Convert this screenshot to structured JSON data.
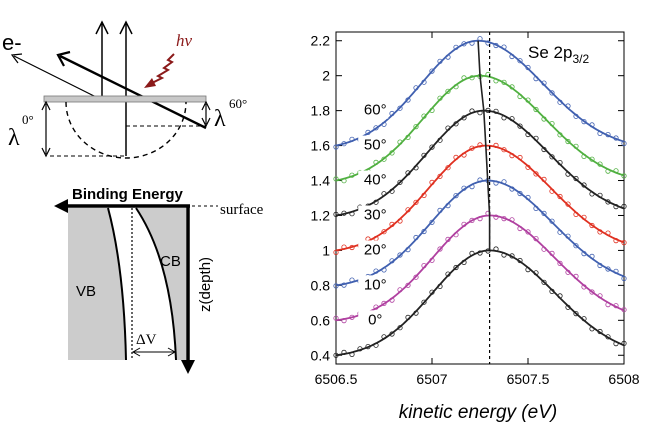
{
  "geometry_diagram": {
    "electron_label": "e-",
    "photon_label": "hν",
    "lambda_symbol": "λ",
    "lambda_left_sup": "0°",
    "lambda_right_sup": "60°"
  },
  "band_diagram": {
    "binding_energy_label": "Binding Energy",
    "surface_label": "surface",
    "depth_label": "z(depth)",
    "vb_label": "VB",
    "cb_label": "CB",
    "delta_v_label": "ΔV"
  },
  "chart_data": {
    "type": "line",
    "title": "Se 2p",
    "title_subscript": "3/2",
    "xlabel": "kinetic energy (eV)",
    "ylabel": "",
    "xlim": [
      6506.5,
      6508
    ],
    "ylim": [
      0.35,
      2.25
    ],
    "x_ticks": [
      6506.5,
      6507,
      6507.5,
      6508
    ],
    "x_tick_labels": [
      "6506.5",
      "6507",
      "6507.5",
      "6508"
    ],
    "y_ticks": [
      0.4,
      0.6,
      0.8,
      1,
      1.2,
      1.4,
      1.6,
      1.8,
      2,
      2.2
    ],
    "y_tick_labels": [
      "0.4",
      "0.6",
      "0.8",
      "1",
      "1.2",
      "1.4",
      "1.6",
      "1.8",
      "2",
      "2.2"
    ],
    "series": [
      {
        "name": "0°",
        "angle_label": "0°",
        "color": "#222222",
        "peak_x": 6507.3,
        "peak_y": 1.0,
        "start_y": 0.4
      },
      {
        "name": "10°",
        "angle_label": "10°",
        "color": "#b040a0",
        "peak_x": 6507.3,
        "peak_y": 1.2,
        "start_y": 0.6
      },
      {
        "name": "20°",
        "angle_label": "20°",
        "color": "#4060b0",
        "peak_x": 6507.29,
        "peak_y": 1.4,
        "start_y": 0.8
      },
      {
        "name": "30°",
        "angle_label": "30°",
        "color": "#e03020",
        "peak_x": 6507.28,
        "peak_y": 1.6,
        "start_y": 1.0
      },
      {
        "name": "40°",
        "angle_label": "40°",
        "color": "#222222",
        "peak_x": 6507.27,
        "peak_y": 1.8,
        "start_y": 1.2
      },
      {
        "name": "50°",
        "angle_label": "50°",
        "color": "#50b040",
        "peak_x": 6507.25,
        "peak_y": 2.0,
        "start_y": 1.4
      },
      {
        "name": "60°",
        "angle_label": "60°",
        "color": "#4060b0",
        "peak_x": 6507.24,
        "peak_y": 2.2,
        "start_y": 1.6
      }
    ],
    "reference_line_x": 6507.3,
    "peak_shift_line_color": "#222222"
  }
}
